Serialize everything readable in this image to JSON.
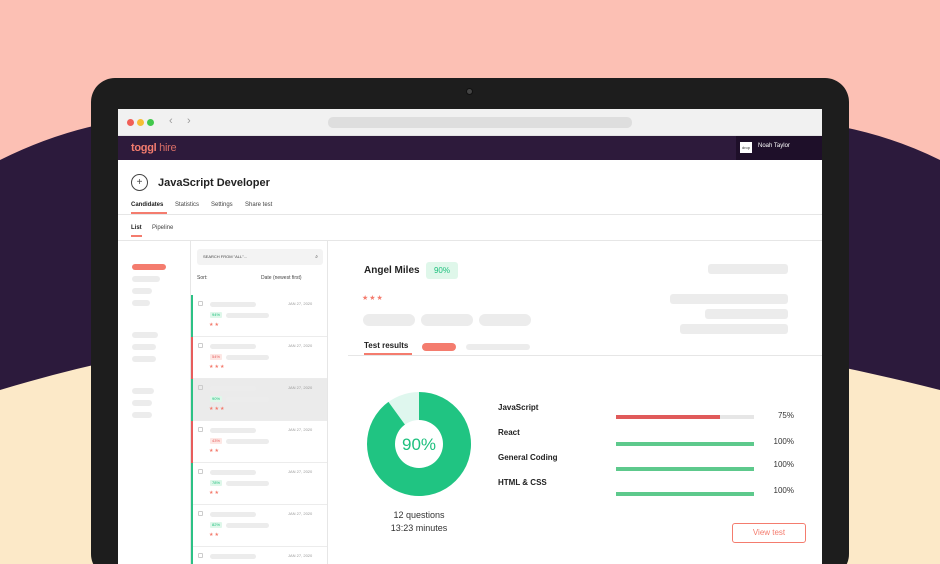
{
  "app": {
    "logo_bold": "toggl",
    "logo_rest": " hire",
    "avatar_text": "drop",
    "user_name": "Noah Taylor",
    "browser_back": "‹",
    "browser_forward": "›"
  },
  "page": {
    "title": "JavaScript Developer",
    "plus_symbol": "+"
  },
  "tabs": [
    "Candidates",
    "Statistics",
    "Settings",
    "Share test"
  ],
  "subtabs": [
    "List",
    "Pipeline"
  ],
  "list": {
    "search_placeholder": "SEARCH FROM \"ALL\"...",
    "sort_label": "Sort:",
    "sort_value": "Date (newest first)",
    "rows": [
      {
        "date": "JAN 27, 2020",
        "pct": "94%",
        "stars": "★★",
        "accent": "#2cc185",
        "pct_bg": "#dff7ea",
        "pct_color": "#1ec07e"
      },
      {
        "date": "JAN 27, 2020",
        "pct": "54%",
        "stars": "★★★",
        "accent": "#e75c5c",
        "pct_bg": "#fde7e4",
        "pct_color": "#e75c5c"
      },
      {
        "date": "JAN 27, 2020",
        "pct": "90%",
        "stars": "★★★",
        "accent": "#2cc185",
        "pct_bg": "#dff7ea",
        "pct_color": "#1ec07e"
      },
      {
        "date": "JAN 27, 2020",
        "pct": "43%",
        "stars": "★★",
        "accent": "#e75c5c",
        "pct_bg": "#fde7e4",
        "pct_color": "#e75c5c"
      },
      {
        "date": "JAN 27, 2020",
        "pct": "78%",
        "stars": "★★",
        "accent": "#2cc185",
        "pct_bg": "#dff7ea",
        "pct_color": "#1ec07e"
      },
      {
        "date": "JAN 27, 2020",
        "pct": "82%",
        "stars": "★★",
        "accent": "#2cc185",
        "pct_bg": "#dff7ea",
        "pct_color": "#1ec07e"
      },
      {
        "date": "JAN 27, 2020",
        "pct": "",
        "stars": "",
        "accent": "#2cc185",
        "pct_bg": "#dff7ea",
        "pct_color": "#1ec07e"
      }
    ]
  },
  "candidate": {
    "name": "Angel Miles",
    "score": "90%",
    "stars": "★★★",
    "results_tab": "Test results",
    "donut_label": "90%",
    "donut_fraction": 0.9,
    "questions": "12 questions",
    "duration": "13:23 minutes",
    "skills": [
      {
        "name": "JavaScript",
        "pct": "75%",
        "fraction": 0.75,
        "color": "#e05a5a"
      },
      {
        "name": "React",
        "pct": "100%",
        "fraction": 1.0,
        "color": "#5dc98c"
      },
      {
        "name": "General Coding",
        "pct": "100%",
        "fraction": 1.0,
        "color": "#5dc98c"
      },
      {
        "name": "HTML & CSS",
        "pct": "100%",
        "fraction": 1.0,
        "color": "#5dc98c"
      }
    ],
    "view_button": "View test"
  },
  "colors": {
    "brand": "#f47c6e",
    "appbar": "#2d1a3b",
    "green": "#1ec07e",
    "donut_green": "#20c482",
    "donut_light": "#dff7ee"
  }
}
